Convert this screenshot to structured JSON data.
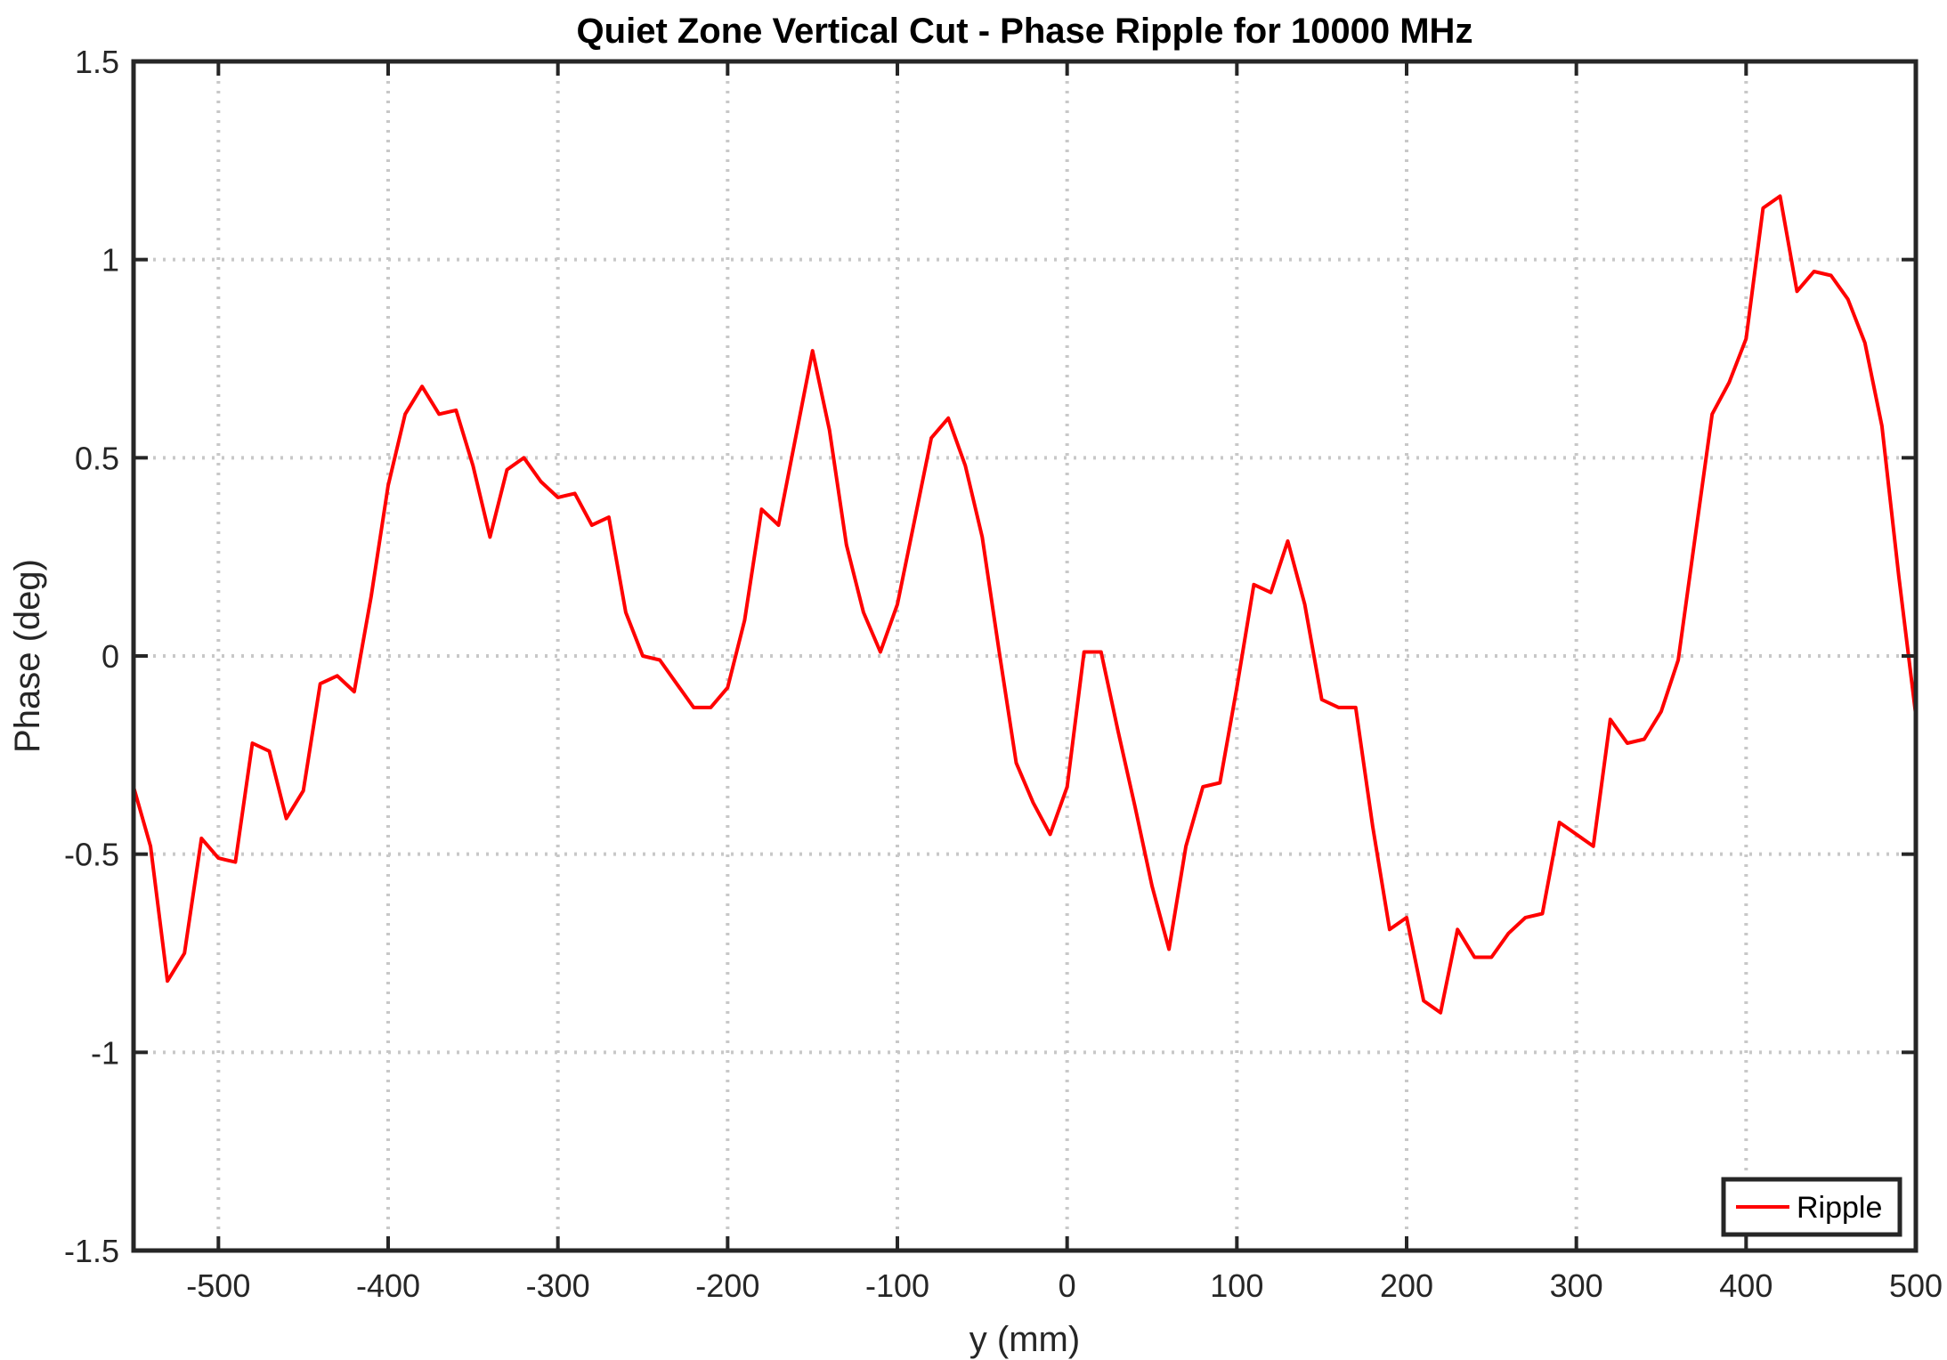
{
  "chart_data": {
    "type": "line",
    "title": "Quiet Zone Vertical Cut - Phase Ripple for 10000 MHz",
    "xlabel": "y (mm)",
    "ylabel": "Phase (deg)",
    "xlim": [
      -550,
      500
    ],
    "ylim": [
      -1.5,
      1.5
    ],
    "xticks": [
      -500,
      -400,
      -300,
      -200,
      -100,
      0,
      100,
      200,
      300,
      400,
      500
    ],
    "xtick_labels": [
      "-500",
      "-400",
      "-300",
      "-200",
      "-100",
      "0",
      "100",
      "200",
      "300",
      "400",
      "500"
    ],
    "yticks": [
      -1.5,
      -1,
      -0.5,
      0,
      0.5,
      1,
      1.5
    ],
    "ytick_labels": [
      "-1.5",
      "-1",
      "-0.5",
      "0",
      "0.5",
      "1",
      "1.5"
    ],
    "grid": true,
    "legend_position": "bottom-right",
    "series": [
      {
        "name": "Ripple",
        "color": "#ff0000",
        "x": [
          -550,
          -540,
          -530,
          -520,
          -510,
          -500,
          -490,
          -480,
          -470,
          -460,
          -450,
          -440,
          -430,
          -420,
          -410,
          -400,
          -390,
          -380,
          -370,
          -360,
          -350,
          -340,
          -330,
          -320,
          -310,
          -300,
          -290,
          -280,
          -270,
          -260,
          -250,
          -240,
          -230,
          -220,
          -210,
          -200,
          -190,
          -180,
          -170,
          -160,
          -150,
          -140,
          -130,
          -120,
          -110,
          -100,
          -90,
          -80,
          -70,
          -60,
          -50,
          -40,
          -30,
          -20,
          -10,
          0,
          10,
          20,
          30,
          40,
          50,
          60,
          70,
          80,
          90,
          100,
          110,
          120,
          130,
          140,
          150,
          160,
          170,
          180,
          190,
          200,
          210,
          220,
          230,
          240,
          250,
          260,
          270,
          280,
          290,
          300,
          310,
          320,
          330,
          340,
          350,
          360,
          370,
          380,
          390,
          400,
          410,
          420,
          430,
          440,
          450,
          460,
          470,
          480,
          490,
          500
        ],
        "y": [
          -0.33,
          -0.48,
          -0.82,
          -0.75,
          -0.46,
          -0.51,
          -0.52,
          -0.22,
          -0.24,
          -0.41,
          -0.34,
          -0.07,
          -0.05,
          -0.09,
          0.15,
          0.43,
          0.61,
          0.68,
          0.61,
          0.62,
          0.48,
          0.3,
          0.47,
          0.5,
          0.44,
          0.4,
          0.41,
          0.33,
          0.35,
          0.11,
          0.0,
          -0.01,
          -0.07,
          -0.13,
          -0.13,
          -0.08,
          0.09,
          0.37,
          0.33,
          0.55,
          0.77,
          0.57,
          0.28,
          0.11,
          0.01,
          0.13,
          0.34,
          0.55,
          0.6,
          0.48,
          0.3,
          0.01,
          -0.27,
          -0.37,
          -0.45,
          -0.33,
          0.01,
          0.01,
          -0.19,
          -0.38,
          -0.58,
          -0.74,
          -0.48,
          -0.33,
          -0.32,
          -0.08,
          0.18,
          0.16,
          0.29,
          0.13,
          -0.11,
          -0.13,
          -0.13,
          -0.43,
          -0.69,
          -0.66,
          -0.87,
          -0.9,
          -0.69,
          -0.76,
          -0.76,
          -0.7,
          -0.66,
          -0.65,
          -0.42,
          -0.45,
          -0.48,
          -0.16,
          -0.22,
          -0.21,
          -0.14,
          -0.01,
          0.3,
          0.61,
          0.69,
          0.8,
          1.13,
          1.16,
          0.92,
          0.97,
          0.96,
          0.9,
          0.79,
          0.58,
          0.2,
          -0.15
        ]
      }
    ]
  }
}
